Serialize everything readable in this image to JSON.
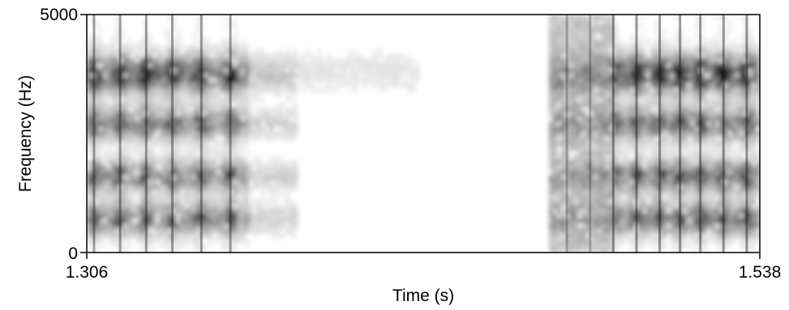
{
  "chart_data": {
    "type": "heatmap",
    "title": "",
    "xlabel": "Time (s)",
    "ylabel": "Frequency (Hz)",
    "xlim": [
      1.306,
      1.538
    ],
    "ylim": [
      0,
      5000
    ],
    "x_ticks": [
      "1.306",
      "1.538"
    ],
    "y_ticks": [
      "0",
      "5000"
    ],
    "colormap": {
      "low": "#ffffff",
      "high": "#000000"
    },
    "segments": [
      {
        "t_start": 1.306,
        "t_end": 1.362,
        "kind": "voiced",
        "strength": 0.85
      },
      {
        "t_start": 1.362,
        "t_end": 1.378,
        "kind": "fading",
        "strength": 0.4
      },
      {
        "t_start": 1.378,
        "t_end": 1.42,
        "kind": "faint",
        "strength": 0.12
      },
      {
        "t_start": 1.42,
        "t_end": 1.466,
        "kind": "silence",
        "strength": 0.0
      },
      {
        "t_start": 1.466,
        "t_end": 1.487,
        "kind": "onset",
        "strength": 0.55
      },
      {
        "t_start": 1.487,
        "t_end": 1.538,
        "kind": "voiced",
        "strength": 0.9
      }
    ],
    "formants_hz": [
      700,
      1600,
      2700,
      3750
    ],
    "glottal_pulses_s": [
      1.3085,
      1.3175,
      1.3265,
      1.3355,
      1.3455,
      1.3555,
      1.4715,
      1.4795,
      1.4875,
      1.4955,
      1.5035,
      1.5105,
      1.5175,
      1.5255,
      1.5335
    ]
  }
}
